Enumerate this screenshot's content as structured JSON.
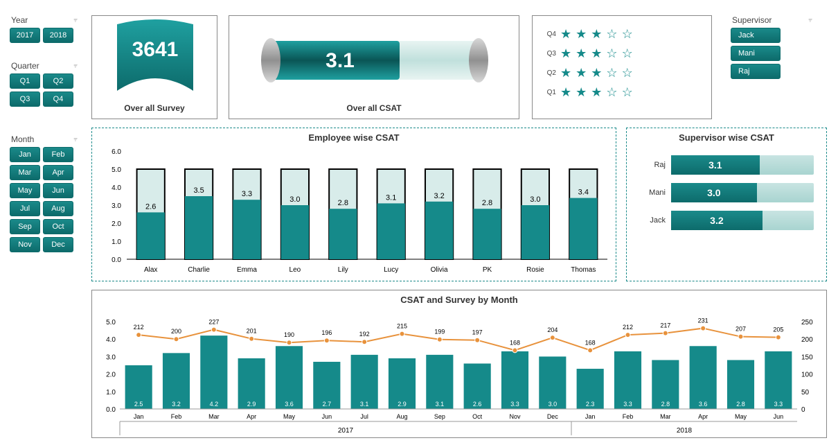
{
  "colors": {
    "teal": "#158a8a",
    "teal_dark": "#0d6b6b",
    "teal_light": "#c8e4e2",
    "orange": "#e8923c",
    "grid": "#dddddd",
    "text": "#333333",
    "grey_cap": "#b8b8b8"
  },
  "slicers": {
    "year": {
      "title": "Year",
      "items": [
        "2017",
        "2018"
      ]
    },
    "quarter": {
      "title": "Quarter",
      "items": [
        "Q1",
        "Q2",
        "Q3",
        "Q4"
      ]
    },
    "month": {
      "title": "Month",
      "items": [
        "Jan",
        "Feb",
        "Mar",
        "Apr",
        "May",
        "Jun",
        "Jul",
        "Aug",
        "Sep",
        "Oct",
        "Nov",
        "Dec"
      ]
    },
    "supervisor": {
      "title": "Supervisor",
      "items": [
        "Jack",
        "Mani",
        "Raj"
      ]
    }
  },
  "overall_survey": {
    "value": "3641",
    "label": "Over all Survey"
  },
  "overall_csat": {
    "value": "3.1",
    "label": "Over all CSAT",
    "max": 5
  },
  "star_rating": {
    "rows": [
      {
        "label": "Q4",
        "filled": 3
      },
      {
        "label": "Q3",
        "filled": 3
      },
      {
        "label": "Q2",
        "filled": 3
      },
      {
        "label": "Q1",
        "filled": 3
      }
    ],
    "max": 5
  },
  "employee_chart": {
    "title": "Employee  wise CSAT",
    "ylim": [
      0,
      6
    ],
    "ytick": 1,
    "bar_max": 5,
    "bar_fill": "#158a8a",
    "bar_bg": "#d8ecea",
    "bar_border": "#000000",
    "items": [
      {
        "name": "Alax",
        "val": 2.6
      },
      {
        "name": "Charlie",
        "val": 3.5
      },
      {
        "name": "Emma",
        "val": 3.3
      },
      {
        "name": "Leo",
        "val": 3.0
      },
      {
        "name": "Lily",
        "val": 2.8
      },
      {
        "name": "Lucy",
        "val": 3.1
      },
      {
        "name": "Olivia",
        "val": 3.2
      },
      {
        "name": "PK",
        "val": 2.8
      },
      {
        "name": "Rosie",
        "val": 3.0
      },
      {
        "name": "Thomas",
        "val": 3.4
      }
    ]
  },
  "supervisor_chart": {
    "title": "Supervisor  wise  CSAT",
    "max": 5,
    "items": [
      {
        "name": "Raj",
        "val": 3.1
      },
      {
        "name": "Mani",
        "val": 3.0
      },
      {
        "name": "Jack",
        "val": 3.2
      }
    ]
  },
  "monthly_chart": {
    "title": "CSAT and Survey by Month",
    "y1": {
      "lim": [
        0,
        5
      ],
      "tick": 1
    },
    "y2": {
      "lim": [
        0,
        250
      ],
      "tick": 50
    },
    "bar_color": "#158a8a",
    "line_color": "#e8923c",
    "groups": [
      {
        "year": "2017",
        "months": [
          {
            "m": "Jan",
            "csat": 2.5,
            "survey": 212
          },
          {
            "m": "Feb",
            "csat": 3.2,
            "survey": 200
          },
          {
            "m": "Mar",
            "csat": 4.2,
            "survey": 227
          },
          {
            "m": "Apr",
            "csat": 2.9,
            "survey": 201
          },
          {
            "m": "May",
            "csat": 3.6,
            "survey": 190
          },
          {
            "m": "Jun",
            "csat": 2.7,
            "survey": 196
          },
          {
            "m": "Jul",
            "csat": 3.1,
            "survey": 192
          },
          {
            "m": "Aug",
            "csat": 2.9,
            "survey": 215
          },
          {
            "m": "Sep",
            "csat": 3.1,
            "survey": 199
          },
          {
            "m": "Oct",
            "csat": 2.6,
            "survey": 197
          },
          {
            "m": "Nov",
            "csat": 3.3,
            "survey": 168
          },
          {
            "m": "Dec",
            "csat": 3.0,
            "survey": 204
          }
        ]
      },
      {
        "year": "2018",
        "months": [
          {
            "m": "Jan",
            "csat": 2.3,
            "survey": 168
          },
          {
            "m": "Feb",
            "csat": 3.3,
            "survey": 212
          },
          {
            "m": "Mar",
            "csat": 2.8,
            "survey": 217
          },
          {
            "m": "Apr",
            "csat": 3.6,
            "survey": 231
          },
          {
            "m": "May",
            "csat": 2.8,
            "survey": 207
          },
          {
            "m": "Jun",
            "csat": 3.3,
            "survey": 205
          }
        ]
      }
    ]
  }
}
